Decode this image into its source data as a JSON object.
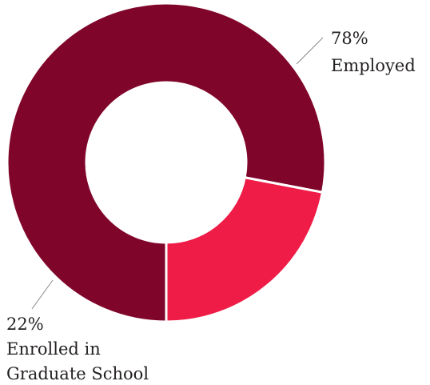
{
  "chart_data": {
    "type": "pie",
    "donut": true,
    "slices": [
      {
        "value": 78,
        "percent_label": "78%",
        "name_lines": [
          "Employed"
        ],
        "color": "#80052b"
      },
      {
        "value": 22,
        "percent_label": "22%",
        "name_lines": [
          "Enrolled in",
          "Graduate School"
        ],
        "color": "#ee1c47"
      }
    ]
  }
}
